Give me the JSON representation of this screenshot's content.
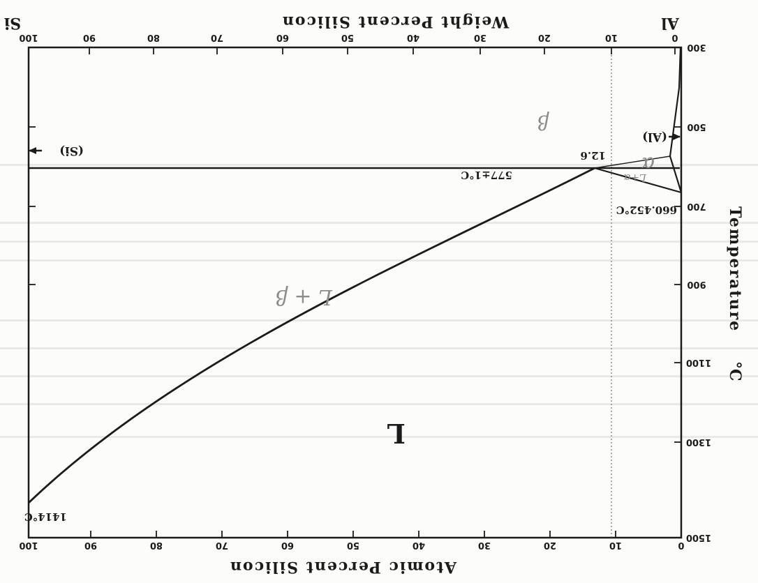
{
  "diagram": {
    "element_left": "Al",
    "element_right": "Si",
    "top_axis_title": "Weight Percent Silicon",
    "bottom_axis_title": "Atomic Percent Silicon",
    "left_axis_title": "Temperature",
    "left_axis_unit": "°C",
    "weight_ticks": [
      "0",
      "10",
      "20",
      "30",
      "40",
      "50",
      "60",
      "70",
      "80",
      "90",
      "100"
    ],
    "atomic_ticks": [
      "0",
      "10",
      "20",
      "30",
      "40",
      "50",
      "60",
      "70",
      "80",
      "90",
      "100"
    ],
    "temperature_ticks": [
      "300",
      "500",
      "700",
      "900",
      "1100",
      "1300",
      "1500"
    ],
    "annotations": {
      "al_melting": "660.452°C",
      "eutectic": "577±1°C",
      "eutectic_comp": "12.6",
      "si_melting": "1414°C",
      "al_phase": "(Al)",
      "si_phase": "(Si)",
      "liquid": "L"
    },
    "handwritten": {
      "alpha": "α",
      "beta": "β",
      "l_plus_alpha": "L+α",
      "l_plus_beta": "L + β"
    }
  }
}
